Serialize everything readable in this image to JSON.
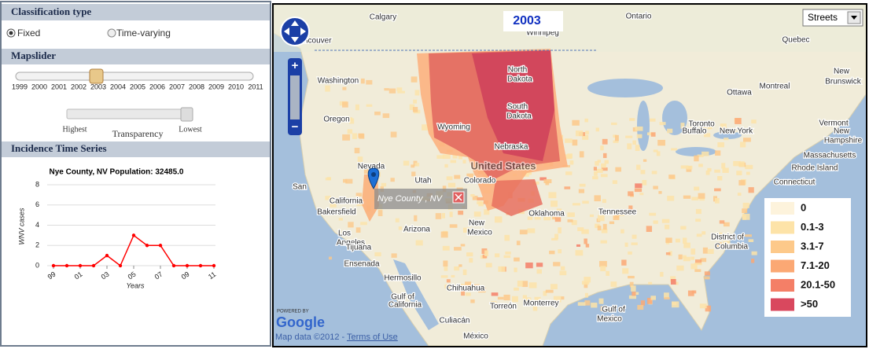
{
  "classification": {
    "title": "Classification type",
    "options": [
      "Fixed",
      "Time-varying"
    ]
  },
  "mapslider": {
    "title": "Mapslider",
    "years": [
      "1999",
      "2000",
      "2001",
      "2002",
      "2003",
      "2004",
      "2005",
      "2006",
      "2007",
      "2008",
      "2009",
      "2010",
      "2011"
    ],
    "transparency": {
      "high": "Highest",
      "title": "Transparency",
      "low": "Lowest"
    }
  },
  "incidence": {
    "title": "Incidence Time Series"
  },
  "incidence_chart": {
    "type": "line",
    "title": "Nye County, NV Population: 32485.0",
    "x_label": "Years",
    "y_label": "WNV cases",
    "x": [
      1999,
      2000,
      2001,
      2002,
      2003,
      2004,
      2005,
      2006,
      2007,
      2008,
      2009,
      2010,
      2011
    ],
    "values": [
      0,
      0,
      0,
      0,
      1,
      0,
      3,
      2,
      2,
      0,
      0,
      0,
      0
    ],
    "color": "#ff0000",
    "xlim": [
      1999,
      2011
    ],
    "ylim": [
      0,
      8
    ],
    "xticks": [
      {
        "value": 1999,
        "label": "99"
      },
      {
        "value": 2001,
        "label": "01"
      },
      {
        "value": 2003,
        "label": "03"
      },
      {
        "value": 2005,
        "label": "05"
      },
      {
        "value": 2007,
        "label": "07"
      },
      {
        "value": 2009,
        "label": "09"
      },
      {
        "value": 2011,
        "label": "11"
      }
    ],
    "yticks": [
      0,
      2,
      4,
      6,
      8
    ],
    "grid": true
  },
  "map": {
    "year": "2003",
    "map_type": "Streets",
    "popup": "Nye County , NV",
    "labels": [
      "Calgary",
      "Winnipeg",
      "Ontario",
      "Quebec",
      "Vancouver",
      "Washington",
      "North",
      "Dakota",
      "South",
      "Dakota",
      "Oregon",
      "Wyoming",
      "Nebraska",
      "Nevada",
      "Utah",
      "Colorado",
      "United States",
      "San",
      "California",
      "Bakersfield",
      "Los",
      "Angeles",
      "Tijuana",
      "Ensenada",
      "Arizona",
      "New",
      "Mexico",
      "Oklahoma",
      "Tennessee",
      "Ottawa",
      "Toronto",
      "Montreal",
      "Buffalo",
      "New York",
      "New",
      "Brunswick",
      "Vermont",
      "New",
      "Hampshire",
      "Massachusetts",
      "Rhode Island",
      "Connecticut",
      "District of",
      "Columbia",
      "Hermosillo",
      "Chihuahua",
      "Torreón",
      "Monterrey",
      "Culiacán",
      "México",
      "Gulf of",
      "California",
      "Gulf of",
      "Mexico"
    ],
    "legend": [
      {
        "label": "0",
        "color": "#fdf3dc"
      },
      {
        "label": "0.1-3",
        "color": "#fde3a8"
      },
      {
        "label": "3.1-7",
        "color": "#fdc98a"
      },
      {
        "label": "7.1-20",
        "color": "#fba874"
      },
      {
        "label": "20.1-50",
        "color": "#f47f67"
      },
      {
        "label": ">50",
        "color": "#d9485e"
      }
    ],
    "attribution": {
      "powered_by": "POWERED BY",
      "brand": "Google",
      "data": "Map data ©2012 -",
      "terms": "Terms of Use"
    }
  }
}
